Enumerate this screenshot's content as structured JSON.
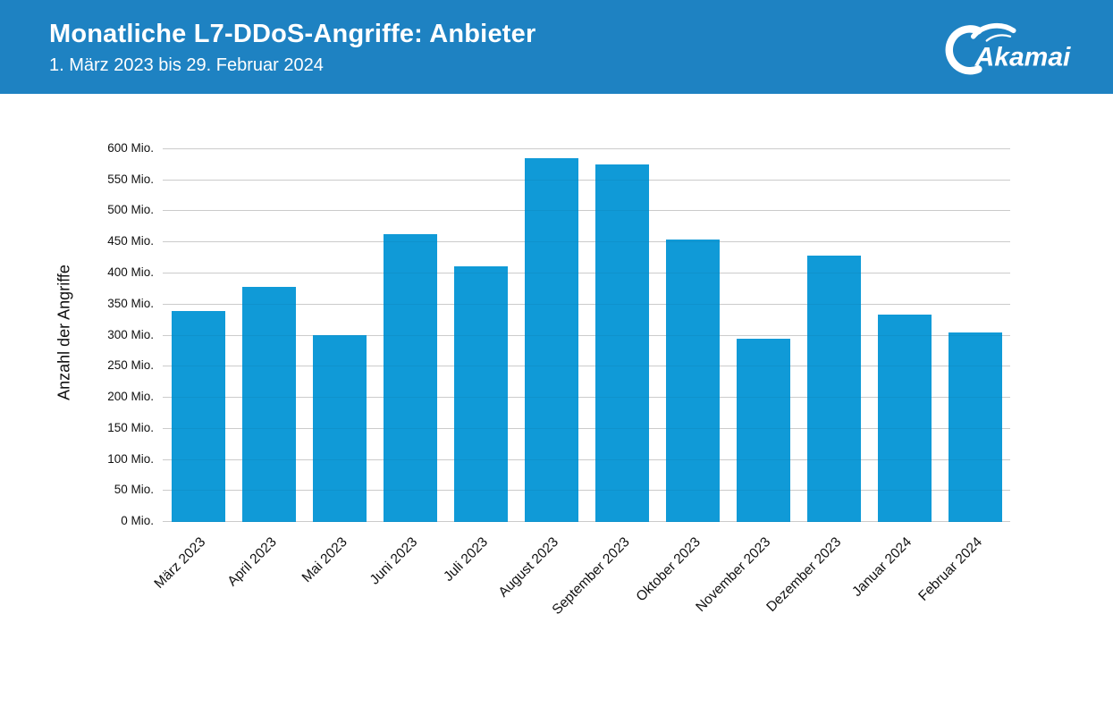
{
  "header": {
    "title": "Monatliche L7-DDoS-Angriffe: Anbieter",
    "subtitle": "1. März 2023 bis 29. Februar 2024",
    "logo_text": "Akamai",
    "background_color": "#1e82c2"
  },
  "chart_data": {
    "type": "bar",
    "title": "Monatliche L7-DDoS-Angriffe: Anbieter",
    "subtitle": "1. März 2023 bis 29. Februar 2024",
    "categories": [
      "März 2023",
      "April 2023",
      "Mai 2023",
      "Juni 2023",
      "Juli 2023",
      "August 2023",
      "September 2023",
      "Oktober 2023",
      "November 2023",
      "Dezember 2023",
      "Januar 2024",
      "Februar 2024"
    ],
    "values": [
      340,
      379,
      301,
      463,
      411,
      586,
      576,
      454,
      295,
      429,
      334,
      305
    ],
    "values_unit": "Mio.",
    "xlabel": "",
    "ylabel": "Anzahl der Angriffe",
    "ylim": [
      0,
      600
    ],
    "ytick_step": 50,
    "yticks": [
      "0 Mio.",
      "50 Mio.",
      "100 Mio.",
      "150 Mio.",
      "200 Mio.",
      "250 Mio.",
      "300 Mio.",
      "350 Mio.",
      "400 Mio.",
      "450 Mio.",
      "500 Mio.",
      "550 Mio.",
      "600 Mio."
    ],
    "grid": true,
    "legend": false,
    "bar_color": "#109ad7",
    "gridline_color": "#d6d6d6",
    "x_label_rotation_deg": -45
  }
}
